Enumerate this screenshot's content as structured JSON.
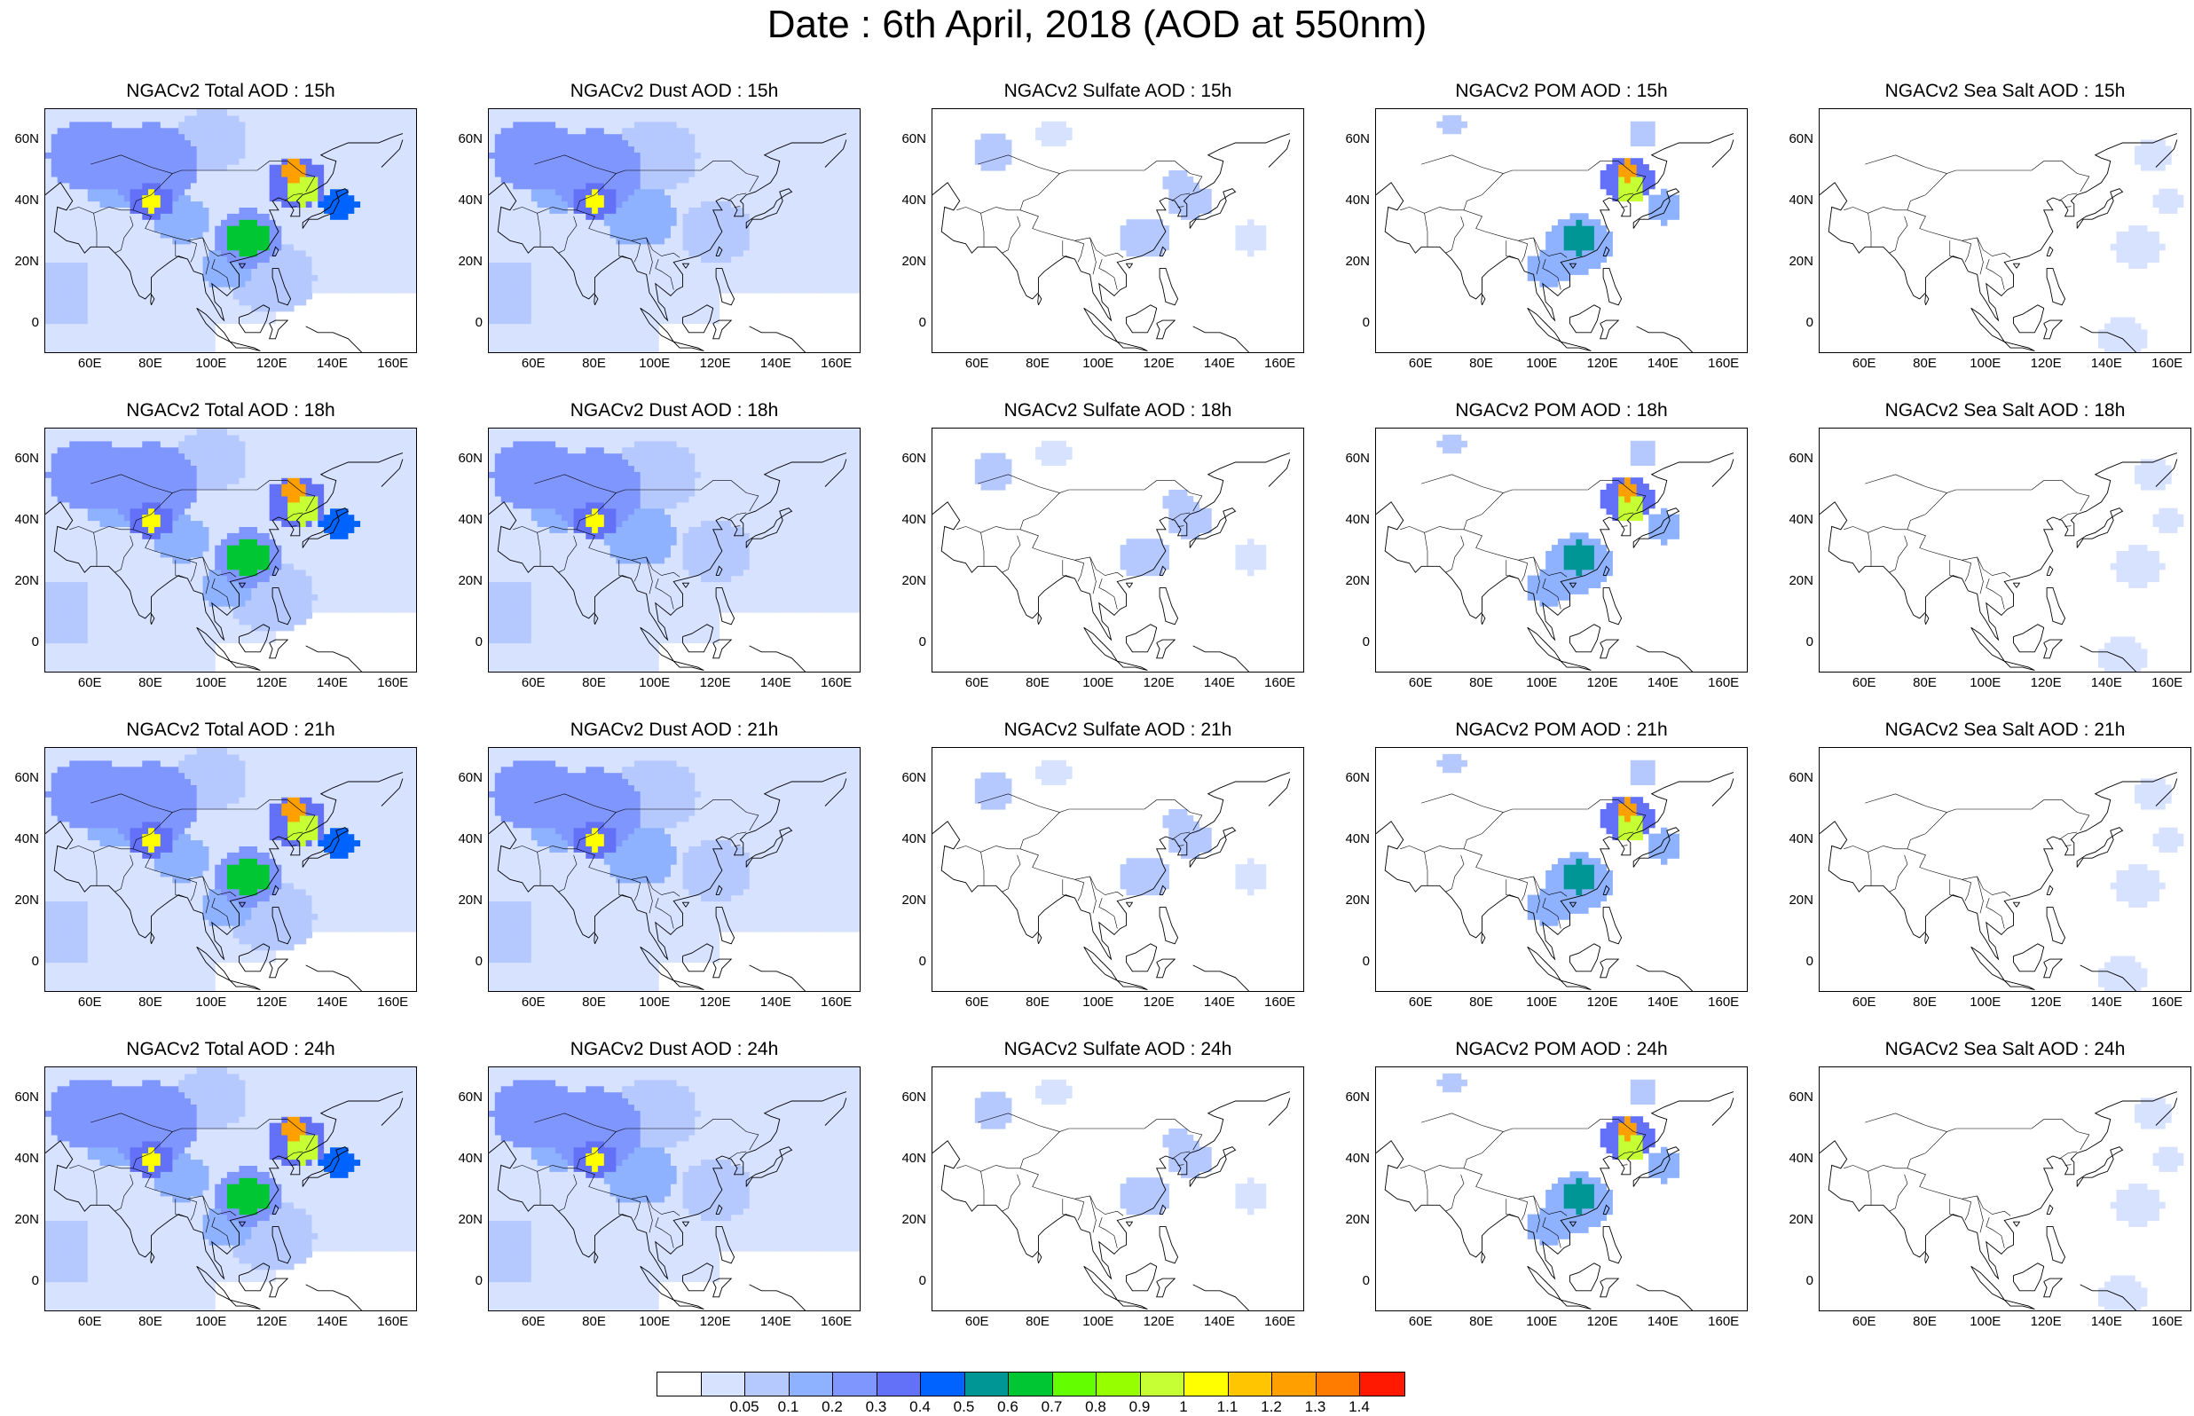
{
  "title": "Date : 6th April, 2018 (AOD at 550nm)",
  "lat_ticks": [
    "60N",
    "40N",
    "20N",
    "0"
  ],
  "lat_values": [
    60,
    40,
    20,
    0
  ],
  "lon_ticks": [
    "60E",
    "80E",
    "100E",
    "120E",
    "140E",
    "160E"
  ],
  "lon_values": [
    60,
    80,
    100,
    120,
    140,
    160
  ],
  "map_extent": {
    "lon": [
      45,
      168
    ],
    "lat": [
      -10,
      70
    ]
  },
  "rows": [
    {
      "hour": "15h",
      "panels": [
        {
          "title": "NGACv2 Total AOD : 15h",
          "field": "total"
        },
        {
          "title": "NGACv2 Dust AOD : 15h",
          "field": "dust"
        },
        {
          "title": "NGACv2 Sulfate AOD : 15h",
          "field": "sulfate"
        },
        {
          "title": "NGACv2 POM AOD : 15h",
          "field": "pom"
        },
        {
          "title": "NGACv2 Sea Salt AOD : 15h",
          "field": "seasalt"
        }
      ]
    },
    {
      "hour": "18h",
      "panels": [
        {
          "title": "NGACv2 Total AOD : 18h",
          "field": "total"
        },
        {
          "title": "NGACv2 Dust AOD : 18h",
          "field": "dust"
        },
        {
          "title": "NGACv2 Sulfate AOD : 18h",
          "field": "sulfate"
        },
        {
          "title": "NGACv2 POM AOD : 18h",
          "field": "pom"
        },
        {
          "title": "NGACv2 Sea Salt AOD : 18h",
          "field": "seasalt"
        }
      ]
    },
    {
      "hour": "21h",
      "panels": [
        {
          "title": "NGACv2 Total AOD : 21h",
          "field": "total"
        },
        {
          "title": "NGACv2 Dust AOD : 21h",
          "field": "dust"
        },
        {
          "title": "NGACv2 Sulfate AOD : 21h",
          "field": "sulfate"
        },
        {
          "title": "NGACv2 POM AOD : 21h",
          "field": "pom"
        },
        {
          "title": "NGACv2 Sea Salt AOD : 21h",
          "field": "seasalt"
        }
      ]
    },
    {
      "hour": "24h",
      "panels": [
        {
          "title": "NGACv2 Total AOD : 24h",
          "field": "total"
        },
        {
          "title": "NGACv2 Dust AOD : 24h",
          "field": "dust"
        },
        {
          "title": "NGACv2 Sulfate AOD : 24h",
          "field": "sulfate"
        },
        {
          "title": "NGACv2 POM AOD : 24h",
          "field": "pom"
        },
        {
          "title": "NGACv2 Sea Salt  AOD : 24h",
          "field": "seasalt"
        }
      ]
    }
  ],
  "colorbar": {
    "colors": [
      "#ffffff",
      "#d6e2ff",
      "#b5c9ff",
      "#8eb2ff",
      "#7f96ff",
      "#6370f8",
      "#0063ff",
      "#009696",
      "#00c633",
      "#63ff00",
      "#96ff00",
      "#c6ff33",
      "#ffff00",
      "#ffc600",
      "#ffa000",
      "#ff7c00",
      "#ff1900"
    ],
    "labels": [
      "0.05",
      "0.1",
      "0.2",
      "0.3",
      "0.4",
      "0.5",
      "0.6",
      "0.7",
      "0.8",
      "0.9",
      "1",
      "1.1",
      "1.2",
      "1.3",
      "1.4"
    ]
  },
  "fields": {
    "total": {
      "background": 1,
      "blobs": [
        {
          "lon": 60,
          "lat": 55,
          "r": 14,
          "v": 4
        },
        {
          "lon": 80,
          "lat": 52,
          "r": 16,
          "v": 4
        },
        {
          "lon": 68,
          "lat": 46,
          "r": 10,
          "v": 3
        },
        {
          "lon": 80,
          "lat": 40,
          "r": 4,
          "v": 12
        },
        {
          "lon": 80,
          "lat": 40,
          "r": 7,
          "v": 5
        },
        {
          "lon": 90,
          "lat": 34,
          "r": 9,
          "v": 3
        },
        {
          "lon": 112,
          "lat": 28,
          "r": 7,
          "v": 8
        },
        {
          "lon": 112,
          "lat": 28,
          "r": 11,
          "v": 4
        },
        {
          "lon": 127,
          "lat": 50,
          "r": 4,
          "v": 14
        },
        {
          "lon": 130,
          "lat": 44,
          "r": 6,
          "v": 11
        },
        {
          "lon": 128,
          "lat": 46,
          "r": 10,
          "v": 5
        },
        {
          "lon": 142,
          "lat": 39,
          "r": 6,
          "v": 6
        },
        {
          "lon": 105,
          "lat": 18,
          "r": 8,
          "v": 3
        },
        {
          "lon": 120,
          "lat": 15,
          "r": 14,
          "v": 2
        },
        {
          "lon": 100,
          "lat": 60,
          "r": 12,
          "v": 2
        }
      ]
    },
    "dust": {
      "background": 1,
      "blobs": [
        {
          "lon": 60,
          "lat": 55,
          "r": 14,
          "v": 4
        },
        {
          "lon": 80,
          "lat": 50,
          "r": 16,
          "v": 4
        },
        {
          "lon": 68,
          "lat": 45,
          "r": 10,
          "v": 3
        },
        {
          "lon": 80,
          "lat": 40,
          "r": 4,
          "v": 12
        },
        {
          "lon": 80,
          "lat": 40,
          "r": 7,
          "v": 5
        },
        {
          "lon": 95,
          "lat": 35,
          "r": 12,
          "v": 3
        },
        {
          "lon": 100,
          "lat": 55,
          "r": 14,
          "v": 2
        },
        {
          "lon": 120,
          "lat": 30,
          "r": 12,
          "v": 2
        }
      ]
    },
    "sulfate": {
      "background": 0,
      "blobs": [
        {
          "lon": 65,
          "lat": 56,
          "r": 7,
          "v": 2
        },
        {
          "lon": 85,
          "lat": 62,
          "r": 6,
          "v": 1
        },
        {
          "lon": 115,
          "lat": 28,
          "r": 8,
          "v": 2
        },
        {
          "lon": 130,
          "lat": 40,
          "r": 7,
          "v": 2
        },
        {
          "lon": 126,
          "lat": 46,
          "r": 5,
          "v": 2
        },
        {
          "lon": 150,
          "lat": 28,
          "r": 6,
          "v": 1
        }
      ]
    },
    "pom": {
      "background": 0,
      "blobs": [
        {
          "lon": 128,
          "lat": 50,
          "r": 4,
          "v": 14
        },
        {
          "lon": 129,
          "lat": 44,
          "r": 5,
          "v": 11
        },
        {
          "lon": 128,
          "lat": 47,
          "r": 9,
          "v": 5
        },
        {
          "lon": 112,
          "lat": 28,
          "r": 6,
          "v": 7
        },
        {
          "lon": 112,
          "lat": 26,
          "r": 11,
          "v": 3
        },
        {
          "lon": 102,
          "lat": 18,
          "r": 7,
          "v": 3
        },
        {
          "lon": 140,
          "lat": 38,
          "r": 6,
          "v": 3
        },
        {
          "lon": 70,
          "lat": 65,
          "r": 4,
          "v": 2
        },
        {
          "lon": 133,
          "lat": 62,
          "r": 5,
          "v": 2
        }
      ]
    },
    "seasalt": {
      "background": 0,
      "blobs": [
        {
          "lon": 155,
          "lat": 55,
          "r": 6,
          "v": 1
        },
        {
          "lon": 150,
          "lat": 25,
          "r": 8,
          "v": 1
        },
        {
          "lon": 145,
          "lat": -5,
          "r": 8,
          "v": 1
        },
        {
          "lon": 160,
          "lat": 40,
          "r": 5,
          "v": 1
        }
      ]
    }
  }
}
